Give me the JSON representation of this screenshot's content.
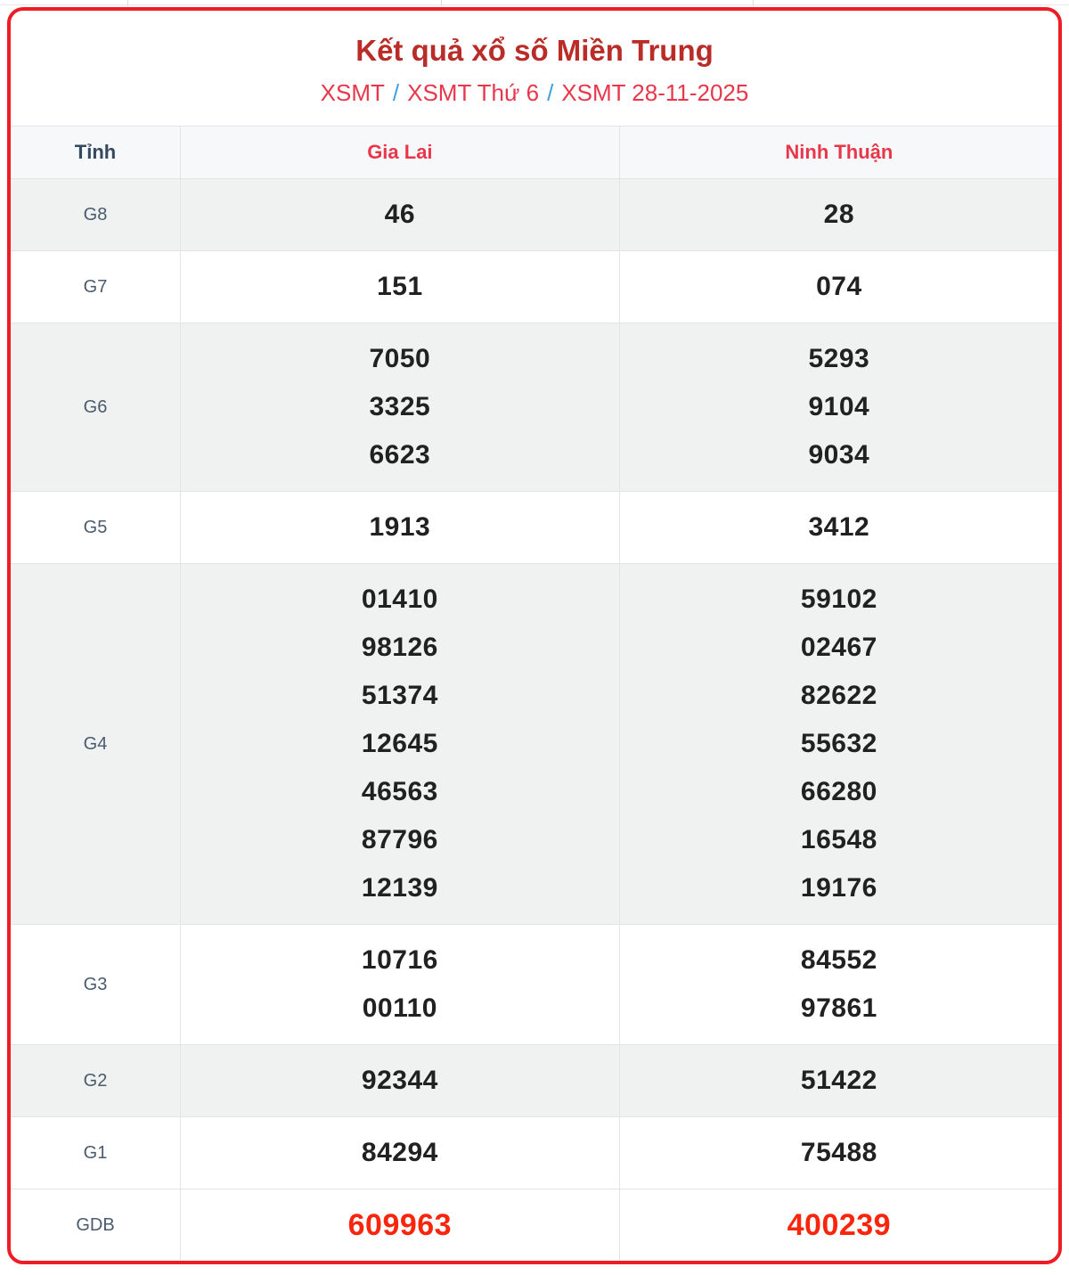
{
  "header": {
    "title": "Kết quả xổ số Miền Trung",
    "breadcrumb": {
      "separator": "/",
      "items": [
        {
          "label": "XSMT"
        },
        {
          "label": "XSMT Thứ 6"
        },
        {
          "label": "XSMT 28-11-2025"
        }
      ]
    }
  },
  "results_table": {
    "columns": [
      {
        "key": "tinh",
        "label": "Tỉnh"
      },
      {
        "key": "gia_lai",
        "label": "Gia Lai"
      },
      {
        "key": "ninh_thuan",
        "label": "Ninh Thuận"
      }
    ],
    "rows": [
      {
        "label": "G8",
        "shade": "gray",
        "highlight": false,
        "values": [
          [
            "46"
          ],
          [
            "28"
          ]
        ]
      },
      {
        "label": "G7",
        "shade": "white",
        "highlight": false,
        "values": [
          [
            "151"
          ],
          [
            "074"
          ]
        ]
      },
      {
        "label": "G6",
        "shade": "gray",
        "highlight": false,
        "values": [
          [
            "7050",
            "3325",
            "6623"
          ],
          [
            "5293",
            "9104",
            "9034"
          ]
        ]
      },
      {
        "label": "G5",
        "shade": "white",
        "highlight": false,
        "values": [
          [
            "1913"
          ],
          [
            "3412"
          ]
        ]
      },
      {
        "label": "G4",
        "shade": "gray",
        "highlight": false,
        "values": [
          [
            "01410",
            "98126",
            "51374",
            "12645",
            "46563",
            "87796",
            "12139"
          ],
          [
            "59102",
            "02467",
            "82622",
            "55632",
            "66280",
            "16548",
            "19176"
          ]
        ]
      },
      {
        "label": "G3",
        "shade": "white",
        "highlight": false,
        "values": [
          [
            "10716",
            "00110"
          ],
          [
            "84552",
            "97861"
          ]
        ]
      },
      {
        "label": "G2",
        "shade": "gray",
        "highlight": false,
        "values": [
          [
            "92344"
          ],
          [
            "51422"
          ]
        ]
      },
      {
        "label": "G1",
        "shade": "white",
        "highlight": false,
        "values": [
          [
            "84294"
          ],
          [
            "75488"
          ]
        ]
      },
      {
        "label": "GDB",
        "shade": "white",
        "highlight": true,
        "values": [
          [
            "609963"
          ],
          [
            "400239"
          ]
        ]
      }
    ]
  },
  "colors": {
    "box_border": "#ee1c25",
    "title_color": "#b92c28",
    "link_red": "#e8374a",
    "separator_blue": "#3f9fdd",
    "header_red": "#e8374a",
    "header_row_bg": "#f7f8f9",
    "label_color": "#34495e",
    "label_color2": "#4a5b6e",
    "number_color": "#212121",
    "highlight_color": "#fa250c",
    "row_gray": "#f0f1f1",
    "grid_line": "#e2e4e6"
  }
}
